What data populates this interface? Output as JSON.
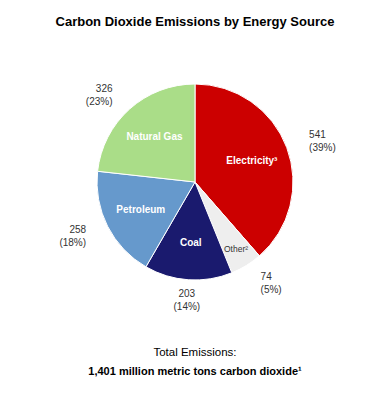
{
  "chart_data": {
    "type": "pie",
    "title": "Carbon Dioxide Emissions by Energy Source",
    "subtitle": "Total Emissions:",
    "annotations": [
      "1,401 million metric tons carbon dioxide¹"
    ],
    "categories": [
      "Electricity³",
      "Other²",
      "Coal",
      "Petroleum",
      "Natural Gas"
    ],
    "values": [
      541,
      74,
      203,
      258,
      326
    ],
    "percents": [
      39,
      5,
      14,
      18,
      23
    ],
    "percent_labels": [
      "(39%)",
      "(5%)",
      "(14%)",
      "(18%)",
      "(23%)"
    ],
    "colors": [
      "#cc0000",
      "#eeeeee",
      "#1a1a6e",
      "#6699cc",
      "#aadd88"
    ],
    "data_labels": true
  }
}
